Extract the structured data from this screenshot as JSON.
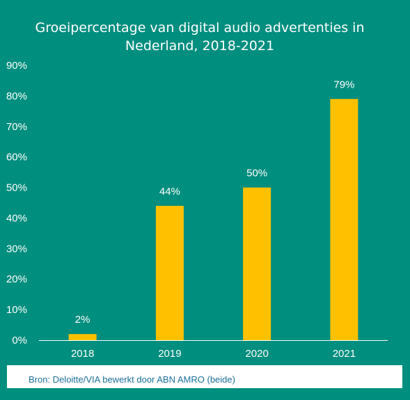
{
  "chart_data": {
    "type": "bar",
    "title_lines": [
      "Groeipercentage van digital audio advertenties in",
      "Nederland, 2018-2021"
    ],
    "categories": [
      "2018",
      "2019",
      "2020",
      "2021"
    ],
    "values": [
      2,
      44,
      50,
      79
    ],
    "data_labels": [
      "2%",
      "44%",
      "50%",
      "79%"
    ],
    "yticks": [
      "0%",
      "10%",
      "20%",
      "30%",
      "40%",
      "50%",
      "60%",
      "70%",
      "80%",
      "90%"
    ],
    "ylim": [
      0,
      90
    ],
    "xlabel": "",
    "ylabel": "",
    "grid": false,
    "legend": "none"
  },
  "source": "Bron: Deloitte/VIA bewerkt door ABN AMRO (beide)",
  "colors": {
    "background": "#008e7e",
    "bar": "#ffc000",
    "text": "#ffffff",
    "axis": "#ffffff",
    "source_text": "#1a6f9a"
  }
}
